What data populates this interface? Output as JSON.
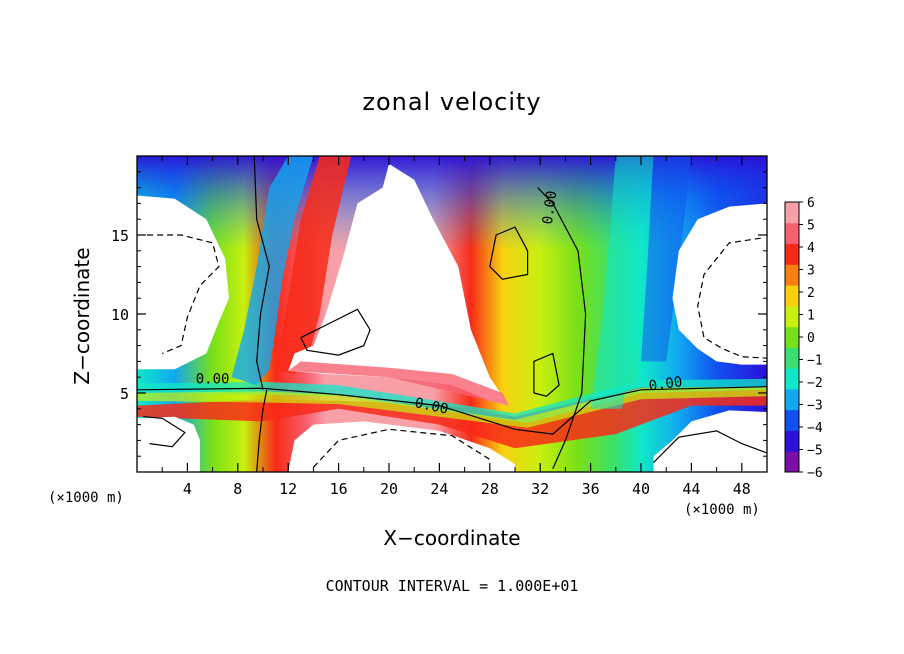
{
  "chart_data": {
    "type": "heatmap",
    "title": "zonal velocity",
    "xlabel": "X−coordinate",
    "ylabel": "Z−coordinate",
    "x_unit_left": "(×1000 m)",
    "x_unit_right": "(×1000 m)",
    "footnote": "CONTOUR INTERVAL = 1.000E+01",
    "xlim": [
      0,
      50
    ],
    "ylim": [
      0,
      20
    ],
    "x_ticks": [
      4,
      8,
      12,
      16,
      20,
      24,
      28,
      32,
      36,
      40,
      44,
      48
    ],
    "y_ticks": [
      5,
      10,
      15
    ],
    "colorbar": {
      "range": [
        -6,
        6
      ],
      "ticks": [
        "6",
        "5",
        "4",
        "3",
        "2",
        "1",
        "0",
        "−1",
        "−2",
        "−3",
        "−4",
        "−5",
        "−6"
      ],
      "colors": [
        "#7a10a8",
        "#2a10d8",
        "#1050f0",
        "#10a8f0",
        "#10e8c8",
        "#38e070",
        "#78e018",
        "#c8f010",
        "#f8d010",
        "#f88010",
        "#f82a18",
        "#f86070",
        "#f8a0a8"
      ]
    },
    "contour_labels": [
      "0.00",
      "0.00",
      "0.00",
      "0.00"
    ],
    "regions": [
      {
        "label": "left_white_blob_top",
        "x": [
          0,
          7
        ],
        "z": [
          9,
          17.5
        ],
        "value": "above 6"
      },
      {
        "label": "central_white_region",
        "x": [
          12,
          29
        ],
        "z": [
          6,
          19
        ],
        "value": "above 6"
      },
      {
        "label": "right_white_blob_top",
        "x": [
          40,
          50
        ],
        "z": [
          7,
          17
        ],
        "value": "above 6"
      },
      {
        "label": "bottom_left_white",
        "x": [
          0,
          4
        ],
        "z": [
          0,
          5
        ],
        "value": "above 6"
      },
      {
        "label": "bottom_mid_white",
        "x": [
          12,
          30
        ],
        "z": [
          0,
          3
        ],
        "value": "above 6"
      },
      {
        "label": "bottom_right_white",
        "x": [
          40,
          50
        ],
        "z": [
          0,
          4
        ],
        "value": "above 6"
      }
    ]
  }
}
